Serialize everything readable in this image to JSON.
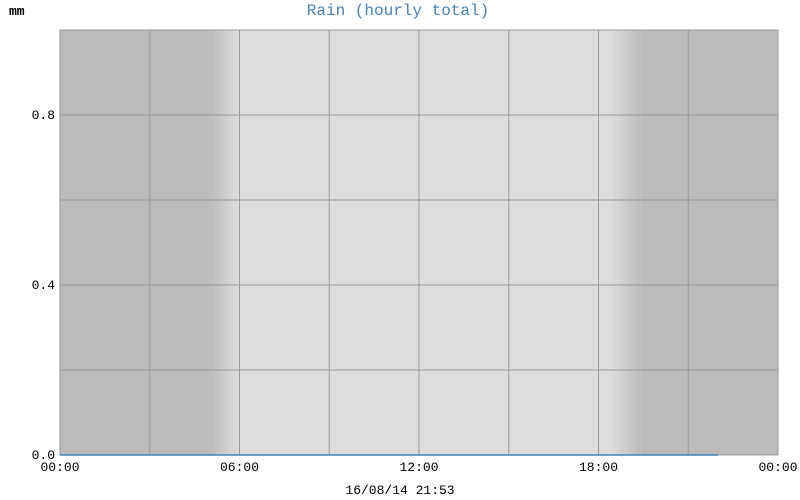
{
  "chart_data": {
    "type": "line",
    "title": "Rain (hourly total)",
    "ylabel": "mm",
    "xlabel": "",
    "timestamp": "16/08/14 21:53",
    "x_ticks": [
      "00:00",
      "06:00",
      "12:00",
      "18:00",
      "00:00"
    ],
    "y_ticks": [
      0.0,
      0.4,
      0.8
    ],
    "y_tick_labels": [
      "0.0",
      "0.4",
      "0.8"
    ],
    "ylim": [
      0,
      1.0
    ],
    "xlim_hours": [
      0,
      24
    ],
    "grid": true,
    "series": [
      {
        "color": "#4682b4",
        "x_hours": [
          0,
          1,
          2,
          3,
          4,
          5,
          6,
          7,
          8,
          9,
          10,
          11,
          12,
          13,
          14,
          15,
          16,
          17,
          18,
          19,
          20,
          21,
          22
        ],
        "values": [
          0,
          0,
          0,
          0,
          0,
          0,
          0,
          0,
          0,
          0,
          0,
          0,
          0,
          0,
          0,
          0,
          0,
          0,
          0,
          0,
          0,
          0,
          0
        ]
      }
    ],
    "night_color": "#bbbbbb",
    "day_color": "#dddddd",
    "sunrise_hours": 6.0,
    "sunset_hours": 19.4
  }
}
